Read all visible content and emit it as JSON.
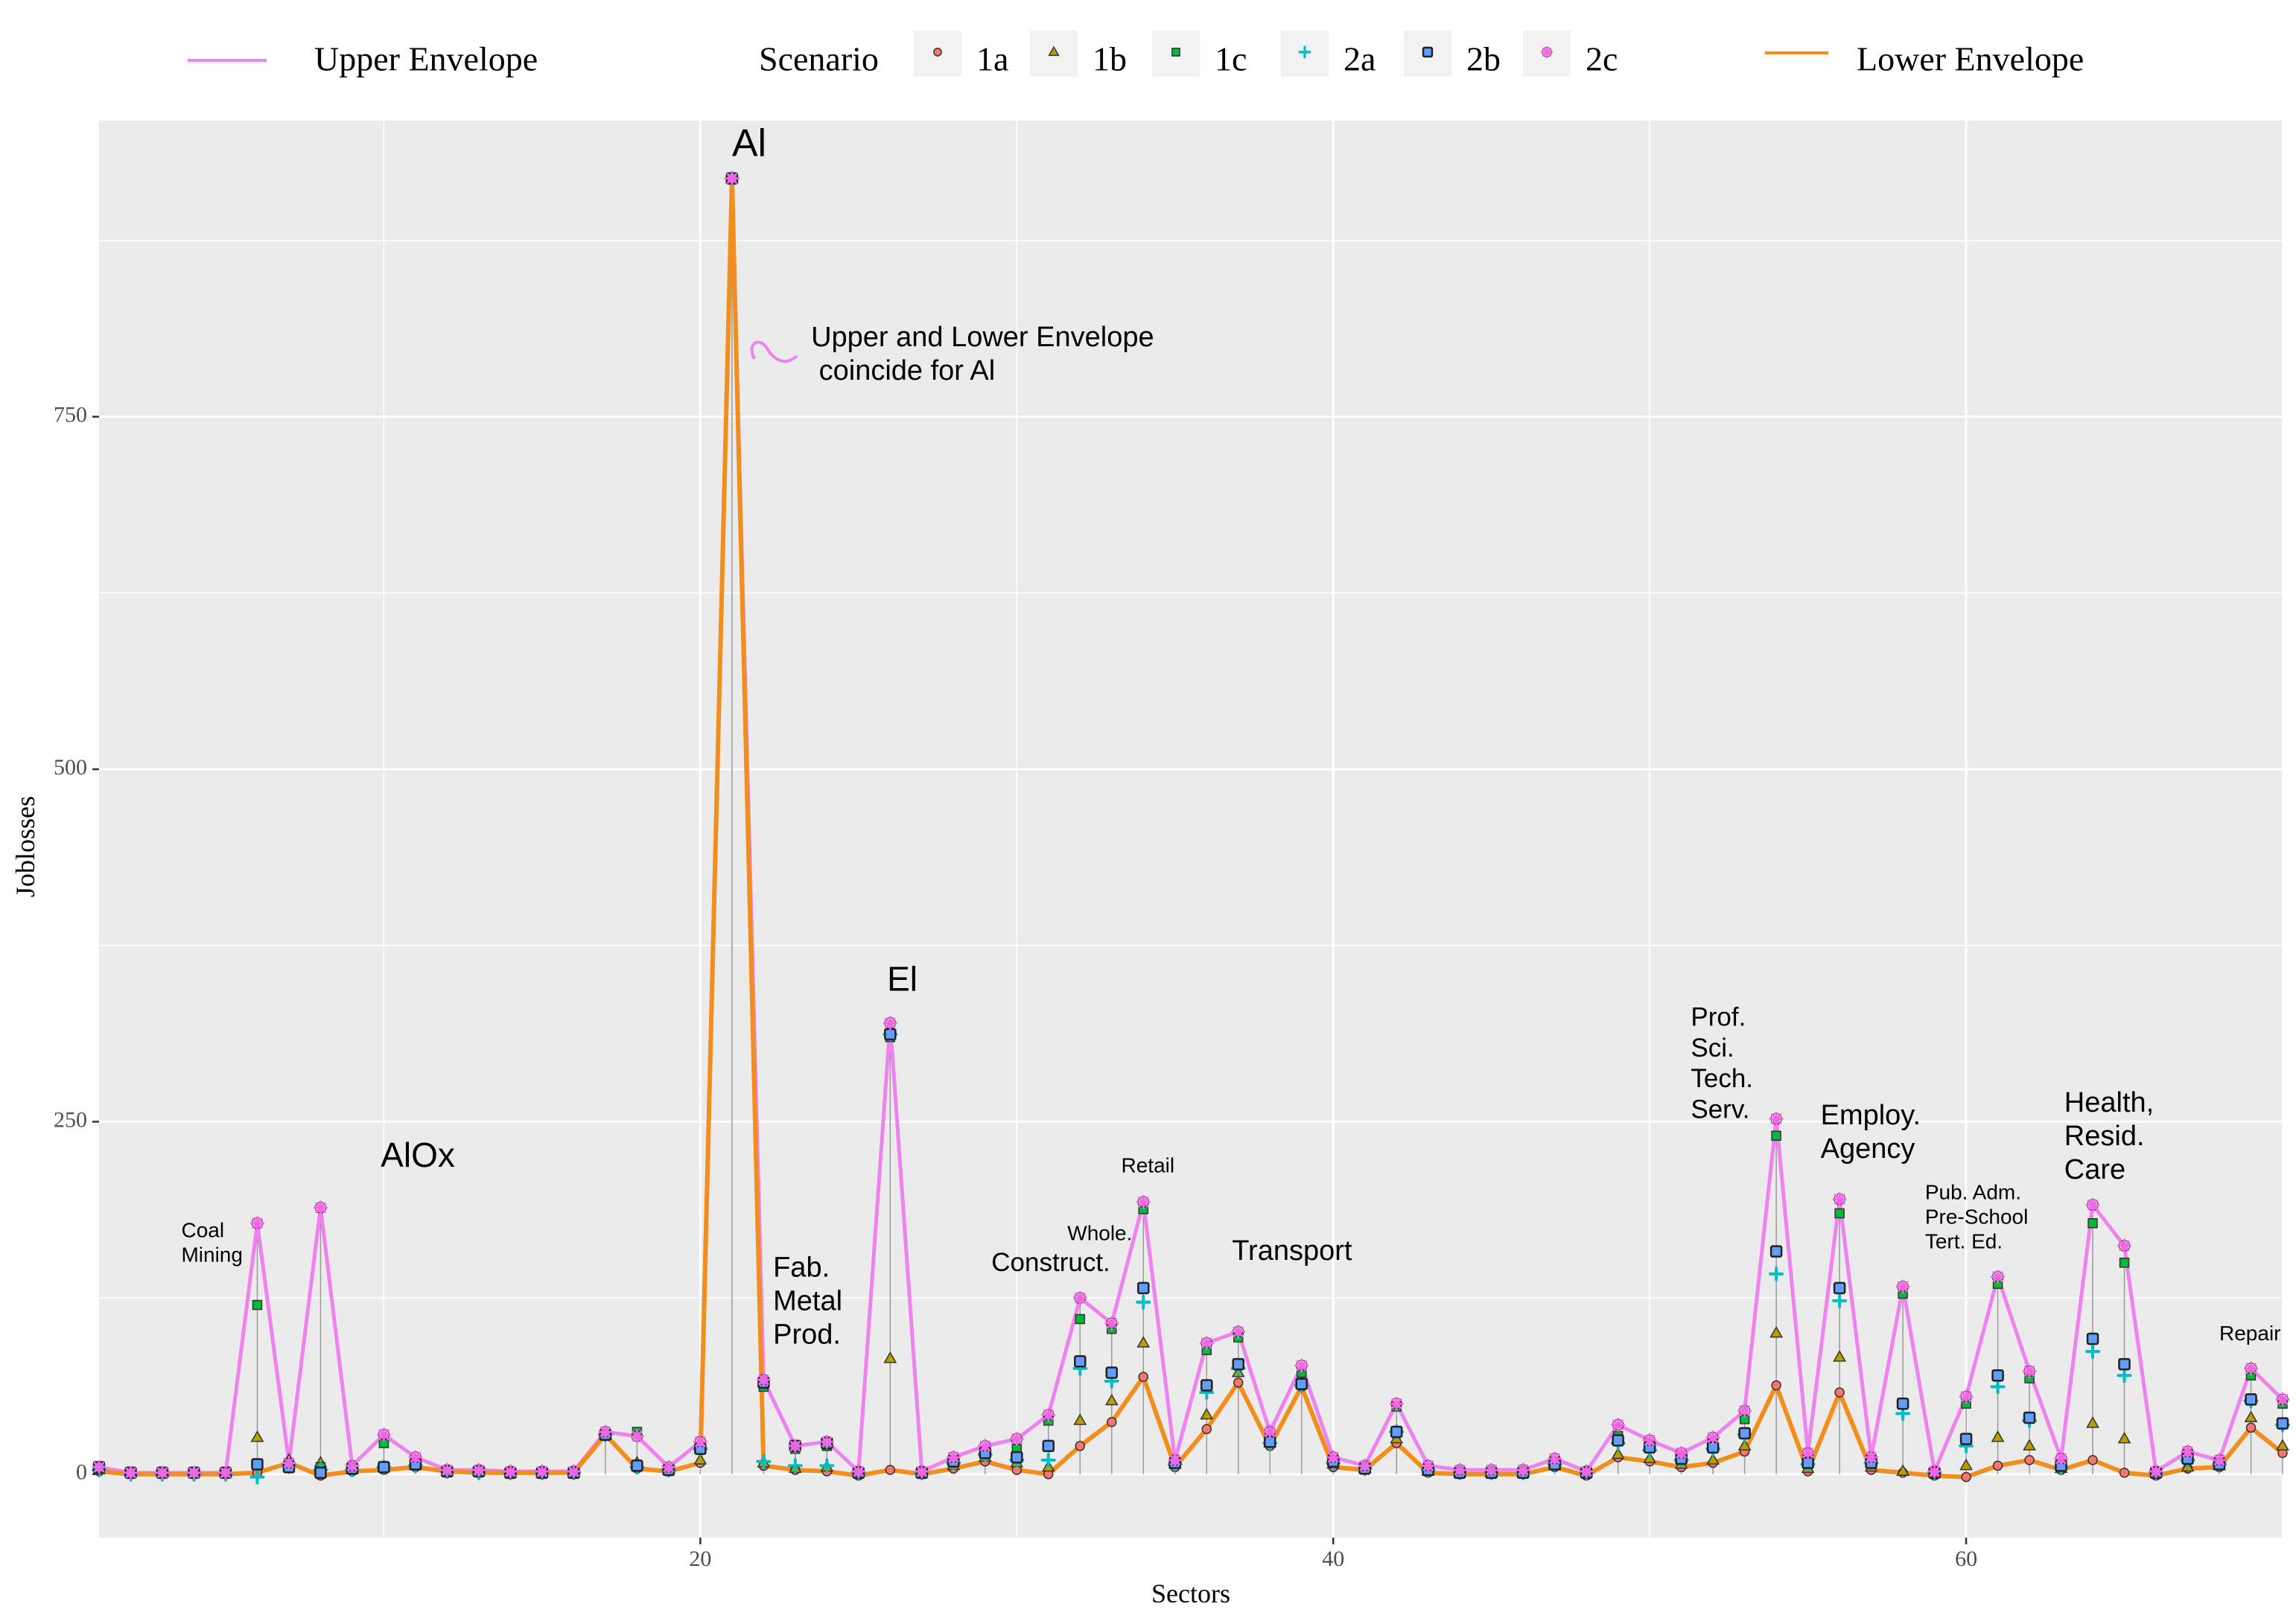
{
  "chart_data": {
    "type": "line",
    "xlabel": "Sectors",
    "ylabel": "Joblosses",
    "xlim": [
      1,
      70
    ],
    "ylim": [
      -45,
      960
    ],
    "x_ticks": [
      20,
      40,
      60
    ],
    "y_ticks": [
      0,
      250,
      500,
      750
    ],
    "grid": true,
    "legend": {
      "placement": "top",
      "upper_label": "Upper Envelope",
      "scenario_title": "Scenario",
      "lower_label": "Lower Envelope"
    },
    "colors": {
      "upper": "#EE82EE",
      "lower": "#F28E1C",
      "1a": "#F8766D",
      "1b": "#B79F00",
      "1c": "#00BA38",
      "2a": "#00BFC4",
      "2b": "#619CFF",
      "2c": "#F564E3"
    },
    "x": [
      1,
      2,
      3,
      4,
      5,
      6,
      7,
      8,
      9,
      10,
      11,
      12,
      13,
      14,
      15,
      16,
      17,
      18,
      19,
      20,
      21,
      22,
      23,
      24,
      25,
      26,
      27,
      28,
      29,
      30,
      31,
      32,
      33,
      34,
      35,
      36,
      37,
      38,
      39,
      40,
      41,
      42,
      43,
      44,
      45,
      46,
      47,
      48,
      49,
      50,
      51,
      52,
      53,
      54,
      55,
      56,
      57,
      58,
      59,
      60,
      61,
      62,
      63,
      64,
      65,
      66,
      67,
      68,
      69,
      70
    ],
    "series": [
      {
        "name": "Upper Envelope",
        "values": [
          5,
          1,
          1,
          1,
          1,
          178,
          8,
          189,
          6,
          28,
          12,
          3,
          3,
          2,
          2,
          2,
          30,
          27,
          5,
          23,
          919,
          67,
          20,
          23,
          2,
          320,
          2,
          12,
          20,
          25,
          42,
          125,
          107,
          193,
          10,
          93,
          101,
          30,
          77,
          12,
          6,
          50,
          6,
          3,
          3,
          3,
          11,
          2,
          35,
          24,
          15,
          26,
          45,
          252,
          15,
          195,
          12,
          133,
          2,
          55,
          140,
          73,
          11,
          191,
          162,
          2,
          16,
          10,
          75,
          53
        ]
      },
      {
        "name": "Lower Envelope",
        "values": [
          2,
          0,
          0,
          0,
          0,
          1,
          8,
          -1,
          2,
          3,
          5,
          2,
          1,
          1,
          1,
          1,
          28,
          4,
          2,
          8,
          919,
          6,
          3,
          2,
          -1,
          3,
          0,
          4,
          9,
          3,
          0,
          20,
          37,
          69,
          5,
          32,
          65,
          20,
          62,
          5,
          3,
          22,
          1,
          0,
          0,
          0,
          5,
          -1,
          12,
          9,
          5,
          8,
          16,
          63,
          2,
          58,
          3,
          1,
          -1,
          -2,
          6,
          10,
          3,
          10,
          1,
          -1,
          4,
          5,
          33,
          15
        ]
      },
      {
        "name": "1a",
        "values": [
          2,
          0,
          0,
          0,
          0,
          1,
          8,
          -1,
          2,
          3,
          5,
          2,
          1,
          1,
          1,
          1,
          28,
          4,
          2,
          8,
          919,
          6,
          3,
          2,
          -1,
          3,
          0,
          4,
          9,
          3,
          0,
          20,
          37,
          69,
          5,
          32,
          65,
          20,
          62,
          5,
          3,
          22,
          1,
          0,
          0,
          0,
          5,
          -1,
          12,
          9,
          5,
          8,
          16,
          63,
          2,
          58,
          3,
          1,
          -1,
          -2,
          6,
          10,
          3,
          10,
          1,
          -1,
          4,
          5,
          33,
          15
        ]
      },
      {
        "name": "1b",
        "values": [
          3,
          1,
          1,
          1,
          1,
          26,
          10,
          8,
          3,
          5,
          6,
          2,
          2,
          1,
          1,
          1,
          28,
          8,
          3,
          10,
          919,
          8,
          4,
          5,
          1,
          82,
          1,
          6,
          12,
          8,
          5,
          38,
          52,
          93,
          7,
          42,
          72,
          22,
          65,
          7,
          4,
          25,
          2,
          1,
          1,
          1,
          6,
          1,
          14,
          11,
          7,
          10,
          20,
          100,
          4,
          83,
          5,
          2,
          1,
          6,
          26,
          20,
          4,
          36,
          25,
          1,
          5,
          6,
          40,
          20
        ]
      },
      {
        "name": "1c",
        "values": [
          4,
          1,
          1,
          1,
          1,
          120,
          8,
          5,
          5,
          22,
          8,
          2,
          2,
          1,
          1,
          1,
          28,
          30,
          4,
          20,
          919,
          62,
          18,
          20,
          1,
          310,
          1,
          10,
          17,
          18,
          38,
          110,
          103,
          188,
          8,
          88,
          97,
          25,
          72,
          10,
          5,
          48,
          4,
          2,
          2,
          2,
          9,
          1,
          27,
          20,
          12,
          22,
          39,
          240,
          10,
          185,
          10,
          128,
          1,
          50,
          135,
          68,
          8,
          178,
          150,
          1,
          14,
          8,
          70,
          50
        ]
      },
      {
        "name": "2a",
        "values": [
          3,
          0,
          0,
          0,
          0,
          -2,
          6,
          3,
          3,
          5,
          6,
          2,
          1,
          1,
          1,
          1,
          28,
          5,
          3,
          18,
          919,
          9,
          6,
          6,
          1,
          312,
          1,
          8,
          14,
          10,
          10,
          75,
          66,
          122,
          7,
          58,
          75,
          22,
          63,
          8,
          4,
          30,
          3,
          1,
          1,
          1,
          7,
          1,
          22,
          17,
          10,
          18,
          28,
          142,
          7,
          123,
          8,
          43,
          1,
          20,
          62,
          38,
          5,
          87,
          70,
          1,
          10,
          7,
          52,
          35
        ]
      },
      {
        "name": "2b",
        "values": [
          5,
          1,
          1,
          1,
          1,
          7,
          5,
          1,
          4,
          5,
          7,
          2,
          2,
          1,
          1,
          1,
          28,
          6,
          3,
          18,
          919,
          65,
          20,
          22,
          1,
          312,
          1,
          9,
          15,
          12,
          20,
          80,
          72,
          132,
          8,
          63,
          78,
          23,
          64,
          9,
          4,
          30,
          3,
          1,
          1,
          1,
          7,
          1,
          24,
          19,
          11,
          19,
          29,
          158,
          8,
          132,
          8,
          50,
          1,
          25,
          70,
          40,
          6,
          96,
          78,
          1,
          11,
          7,
          53,
          36
        ]
      },
      {
        "name": "2c",
        "values": [
          5,
          1,
          1,
          1,
          1,
          178,
          8,
          189,
          6,
          28,
          12,
          3,
          3,
          2,
          2,
          2,
          30,
          27,
          5,
          23,
          919,
          67,
          20,
          23,
          2,
          320,
          2,
          12,
          20,
          25,
          42,
          125,
          107,
          193,
          10,
          93,
          101,
          30,
          77,
          12,
          6,
          50,
          6,
          3,
          3,
          3,
          11,
          2,
          35,
          24,
          15,
          26,
          45,
          252,
          15,
          195,
          12,
          133,
          2,
          55,
          140,
          73,
          11,
          191,
          162,
          2,
          16,
          10,
          75,
          53
        ]
      }
    ],
    "annotations": [
      {
        "text": [
          "Coal",
          "Mining"
        ],
        "x": 3.6,
        "y": 168,
        "size": "s"
      },
      {
        "text": [
          "AlOx"
        ],
        "x": 9.9,
        "y": 218,
        "size": "m"
      },
      {
        "text": [
          "Al"
        ],
        "x": 21.0,
        "y": 935,
        "size": "l"
      },
      {
        "text": [
          "Upper and Lower Envelope",
          " coincide for Al"
        ],
        "x": 23.5,
        "y": 800,
        "size": "m2"
      },
      {
        "text": [
          "Fab.",
          "Metal",
          "Prod."
        ],
        "x": 22.3,
        "y": 140,
        "size": "m2"
      },
      {
        "text": [
          "El"
        ],
        "x": 25.9,
        "y": 343,
        "size": "m"
      },
      {
        "text": [
          "Construct."
        ],
        "x": 29.2,
        "y": 144,
        "size": "m3"
      },
      {
        "text": [
          "Whole."
        ],
        "x": 31.6,
        "y": 166,
        "size": "s"
      },
      {
        "text": [
          "Retail"
        ],
        "x": 33.3,
        "y": 214,
        "size": "s"
      },
      {
        "text": [
          "Transport"
        ],
        "x": 36.8,
        "y": 152,
        "size": "m2"
      },
      {
        "text": [
          "Prof.",
          "Sci.",
          "Tech.",
          "Serv."
        ],
        "x": 51.3,
        "y": 318,
        "size": "m3"
      },
      {
        "text": [
          "Employ.",
          "Agency"
        ],
        "x": 55.4,
        "y": 248,
        "size": "m2"
      },
      {
        "text": [
          "Pub. Adm.",
          "Pre-School",
          "Tert. Ed."
        ],
        "x": 58.7,
        "y": 195,
        "size": "s"
      },
      {
        "text": [
          "Health,",
          "Resid.",
          "Care"
        ],
        "x": 63.1,
        "y": 257,
        "size": "m2"
      },
      {
        "text": [
          "Repair"
        ],
        "x": 68.0,
        "y": 95,
        "size": "s"
      }
    ]
  }
}
